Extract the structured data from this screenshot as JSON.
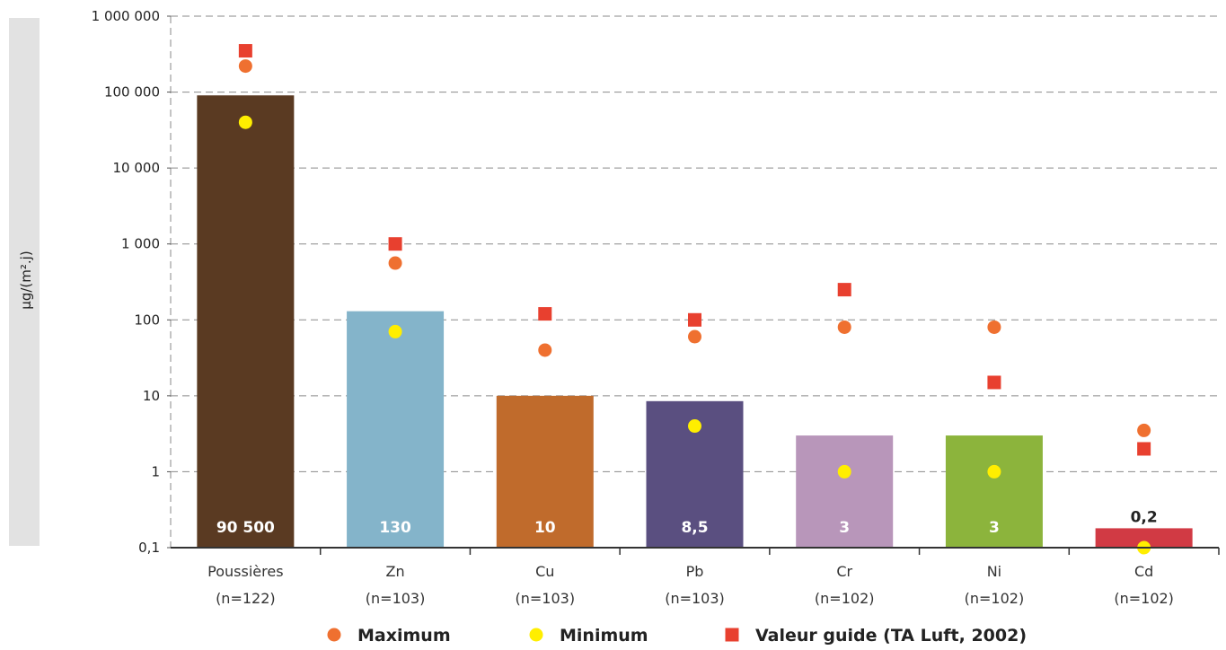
{
  "chart_data": {
    "type": "bar",
    "scale": "log",
    "ylabel": "µg/(m².j)",
    "ylim": [
      0.1,
      1000000
    ],
    "yticks": [
      {
        "value": 0.1,
        "label": "0,1"
      },
      {
        "value": 1,
        "label": "1"
      },
      {
        "value": 10,
        "label": "10"
      },
      {
        "value": 100,
        "label": "100"
      },
      {
        "value": 1000,
        "label": "1 000"
      },
      {
        "value": 10000,
        "label": "10 000"
      },
      {
        "value": 100000,
        "label": "100 000"
      },
      {
        "value": 1000000,
        "label": "1 000 000"
      }
    ],
    "grid": true,
    "legend_position": "bottom",
    "categories": [
      {
        "name": "Poussières",
        "n": "(n=122)"
      },
      {
        "name": "Zn",
        "n": "(n=103)"
      },
      {
        "name": "Cu",
        "n": "(n=103)"
      },
      {
        "name": "Pb",
        "n": "(n=103)"
      },
      {
        "name": "Cr",
        "n": "(n=102)"
      },
      {
        "name": "Ni",
        "n": "(n=102)"
      },
      {
        "name": "Cd",
        "n": "(n=102)"
      }
    ],
    "bars": {
      "values": [
        90500,
        130,
        10,
        8.5,
        3,
        3,
        0.18
      ],
      "labels": [
        "90 500",
        "130",
        "10",
        "8,5",
        "3",
        "3",
        "0,2"
      ],
      "colors": [
        "#5a3a22",
        "#84b4ca",
        "#c06b2c",
        "#5a4f80",
        "#b896ba",
        "#8cb43c",
        "#d13a44"
      ]
    },
    "series": [
      {
        "name": "Maximum",
        "marker": "circle",
        "color": "#ef7030",
        "values": [
          220000,
          560,
          40,
          60,
          80,
          80,
          3.5
        ]
      },
      {
        "name": "Minimum",
        "marker": "circle",
        "color": "#ffee00",
        "values": [
          40000,
          70,
          null,
          4,
          1,
          1,
          0.1
        ]
      },
      {
        "name": "Valeur guide (TA Luft, 2002)",
        "marker": "square",
        "color": "#e8402f",
        "values": [
          350000,
          1000,
          120,
          100,
          250,
          15,
          2
        ]
      }
    ]
  }
}
